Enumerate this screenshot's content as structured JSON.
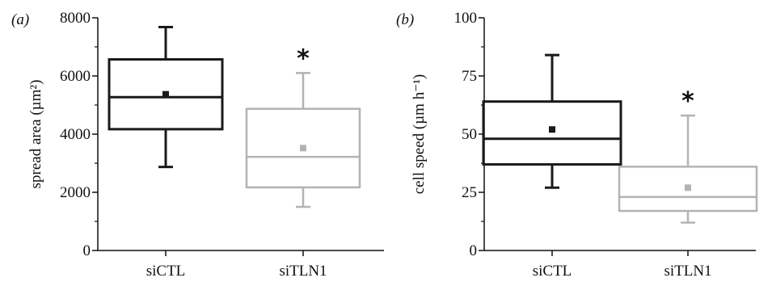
{
  "chart_data": [
    {
      "type": "box",
      "panel_label": "(a)",
      "ylabel": "spread area (µm²)",
      "ylim": [
        0,
        8000
      ],
      "yticks": [
        0,
        2000,
        4000,
        6000,
        8000
      ],
      "categories": [
        "siCTL",
        "siTLN1"
      ],
      "colors": [
        "#1a1a1a",
        "#b3b3b3"
      ],
      "boxes": [
        {
          "category": "siCTL",
          "whisker_low": 2870,
          "q1": 4170,
          "median": 5270,
          "q3": 6570,
          "whisker_high": 7680,
          "mean": 5370
        },
        {
          "category": "siTLN1",
          "whisker_low": 1500,
          "q1": 2170,
          "median": 3220,
          "q3": 4870,
          "whisker_high": 6100,
          "mean": 3520,
          "annotation": "*"
        }
      ]
    },
    {
      "type": "box",
      "panel_label": "(b)",
      "ylabel": "cell speed (µm h⁻¹)",
      "ylim": [
        0,
        100
      ],
      "yticks": [
        0,
        25,
        50,
        75,
        100
      ],
      "categories": [
        "siCTL",
        "siTLN1"
      ],
      "colors": [
        "#1a1a1a",
        "#b3b3b3"
      ],
      "boxes": [
        {
          "category": "siCTL",
          "whisker_low": 27,
          "q1": 37,
          "median": 48,
          "q3": 64,
          "whisker_high": 84,
          "mean": 52
        },
        {
          "category": "siTLN1",
          "whisker_low": 12,
          "q1": 17,
          "median": 23,
          "q3": 36,
          "whisker_high": 58,
          "mean": 27,
          "annotation": "*"
        }
      ]
    }
  ]
}
